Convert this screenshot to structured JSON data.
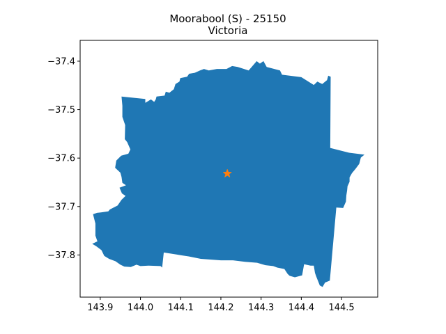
{
  "chart_data": {
    "type": "map",
    "title": "Moorabool (S) - 25150",
    "subtitle": "Victoria",
    "xlabel": "",
    "ylabel": "",
    "xlim": [
      143.85,
      144.59
    ],
    "ylim": [
      -37.887,
      -37.357
    ],
    "xticks": [
      143.9,
      144.0,
      144.1,
      144.2,
      144.3,
      144.4,
      144.5
    ],
    "xtick_labels": [
      "143.9",
      "144.0",
      "144.1",
      "144.2",
      "144.3",
      "144.4",
      "144.5"
    ],
    "yticks": [
      -37.4,
      -37.5,
      -37.6,
      -37.7,
      -37.8
    ],
    "ytick_labels": [
      "−37.4",
      "−37.5",
      "−37.6",
      "−37.7",
      "−37.8"
    ],
    "grid": false,
    "region": {
      "color": "#1f77b4",
      "boundary": [
        [
          143.953,
          -37.473
        ],
        [
          144.012,
          -37.478
        ],
        [
          144.012,
          -37.486
        ],
        [
          144.026,
          -37.479
        ],
        [
          144.034,
          -37.484
        ],
        [
          144.038,
          -37.479
        ],
        [
          144.04,
          -37.473
        ],
        [
          144.06,
          -37.471
        ],
        [
          144.063,
          -37.463
        ],
        [
          144.072,
          -37.465
        ],
        [
          144.083,
          -37.458
        ],
        [
          144.087,
          -37.447
        ],
        [
          144.097,
          -37.442
        ],
        [
          144.099,
          -37.435
        ],
        [
          144.116,
          -37.432
        ],
        [
          144.121,
          -37.426
        ],
        [
          144.135,
          -37.424
        ],
        [
          144.148,
          -37.419
        ],
        [
          144.158,
          -37.416
        ],
        [
          144.17,
          -37.419
        ],
        [
          144.19,
          -37.416
        ],
        [
          144.206,
          -37.416
        ],
        [
          144.214,
          -37.416
        ],
        [
          144.228,
          -37.41
        ],
        [
          144.242,
          -37.412
        ],
        [
          144.269,
          -37.419
        ],
        [
          144.289,
          -37.4
        ],
        [
          144.297,
          -37.405
        ],
        [
          144.306,
          -37.4
        ],
        [
          144.314,
          -37.412
        ],
        [
          144.347,
          -37.419
        ],
        [
          144.352,
          -37.428
        ],
        [
          144.4,
          -37.433
        ],
        [
          144.431,
          -37.449
        ],
        [
          144.44,
          -37.442
        ],
        [
          144.452,
          -37.447
        ],
        [
          144.464,
          -37.439
        ],
        [
          144.467,
          -37.43
        ],
        [
          144.473,
          -37.432
        ],
        [
          144.472,
          -37.579
        ],
        [
          144.519,
          -37.589
        ],
        [
          144.557,
          -37.593
        ],
        [
          144.548,
          -37.599
        ],
        [
          144.544,
          -37.612
        ],
        [
          144.535,
          -37.622
        ],
        [
          144.526,
          -37.631
        ],
        [
          144.52,
          -37.64
        ],
        [
          144.52,
          -37.649
        ],
        [
          144.515,
          -37.658
        ],
        [
          144.514,
          -37.667
        ],
        [
          144.512,
          -37.677
        ],
        [
          144.511,
          -37.69
        ],
        [
          144.504,
          -37.703
        ],
        [
          144.487,
          -37.702
        ],
        [
          144.471,
          -37.853
        ],
        [
          144.459,
          -37.857
        ],
        [
          144.453,
          -37.866
        ],
        [
          144.446,
          -37.863
        ],
        [
          144.437,
          -37.844
        ],
        [
          144.434,
          -37.837
        ],
        [
          144.431,
          -37.822
        ],
        [
          144.423,
          -37.822
        ],
        [
          144.412,
          -37.82
        ],
        [
          144.407,
          -37.819
        ],
        [
          144.402,
          -37.842
        ],
        [
          144.384,
          -37.846
        ],
        [
          144.371,
          -37.843
        ],
        [
          144.366,
          -37.839
        ],
        [
          144.358,
          -37.829
        ],
        [
          144.34,
          -37.826
        ],
        [
          144.33,
          -37.823
        ],
        [
          144.31,
          -37.821
        ],
        [
          144.29,
          -37.816
        ],
        [
          144.26,
          -37.814
        ],
        [
          144.23,
          -37.811
        ],
        [
          144.2,
          -37.811
        ],
        [
          144.15,
          -37.808
        ],
        [
          144.12,
          -37.803
        ],
        [
          144.104,
          -37.801
        ],
        [
          144.058,
          -37.795
        ],
        [
          144.054,
          -37.826
        ],
        [
          144.05,
          -37.823
        ],
        [
          144.02,
          -37.822
        ],
        [
          144.0,
          -37.823
        ],
        [
          143.99,
          -37.82
        ],
        [
          143.976,
          -37.825
        ],
        [
          143.96,
          -37.824
        ],
        [
          143.95,
          -37.82
        ],
        [
          143.938,
          -37.813
        ],
        [
          143.922,
          -37.808
        ],
        [
          143.91,
          -37.802
        ],
        [
          143.903,
          -37.79
        ],
        [
          143.89,
          -37.782
        ],
        [
          143.88,
          -37.777
        ],
        [
          143.893,
          -37.772
        ],
        [
          143.888,
          -37.76
        ],
        [
          143.888,
          -37.735
        ],
        [
          143.882,
          -37.716
        ],
        [
          143.892,
          -37.713
        ],
        [
          143.902,
          -37.712
        ],
        [
          143.92,
          -37.71
        ],
        [
          143.924,
          -37.706
        ],
        [
          143.943,
          -37.698
        ],
        [
          143.953,
          -37.686
        ],
        [
          143.963,
          -37.678
        ],
        [
          143.954,
          -37.673
        ],
        [
          143.948,
          -37.661
        ],
        [
          143.964,
          -37.656
        ],
        [
          143.955,
          -37.651
        ],
        [
          143.953,
          -37.639
        ],
        [
          143.95,
          -37.63
        ],
        [
          143.937,
          -37.62
        ],
        [
          143.94,
          -37.605
        ],
        [
          143.952,
          -37.595
        ],
        [
          143.97,
          -37.591
        ],
        [
          143.975,
          -37.582
        ],
        [
          143.967,
          -37.567
        ],
        [
          143.961,
          -37.561
        ],
        [
          143.962,
          -37.532
        ],
        [
          143.955,
          -37.515
        ],
        [
          143.955,
          -37.492
        ]
      ]
    },
    "marker": {
      "shape": "star",
      "color": "#ff7f0e",
      "x": 144.216,
      "y": -37.632
    }
  }
}
